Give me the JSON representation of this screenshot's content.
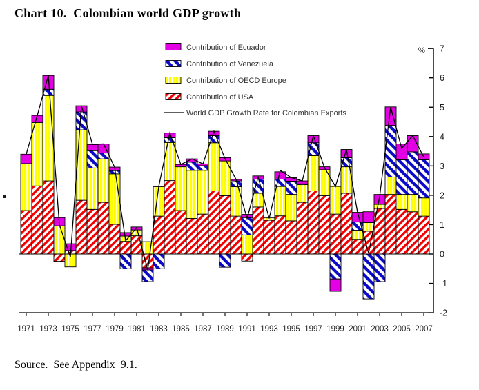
{
  "page": {
    "title": "Chart 10.  Colombian world GDP growth",
    "source": "Source.  See Appendix  9.1."
  },
  "chart_data": {
    "type": "bar",
    "subtype": "stacked-bars-with-line-overlay",
    "unit_label": "%",
    "ylim": [
      -2,
      7
    ],
    "yticks": [
      7,
      6,
      5,
      4,
      3,
      2,
      1,
      0,
      -1,
      -2
    ],
    "xtick_years": [
      1971,
      1973,
      1975,
      1977,
      1979,
      1981,
      1983,
      1985,
      1987,
      1989,
      1991,
      1993,
      1995,
      1997,
      1999,
      2001,
      2003,
      2005,
      2007
    ],
    "grid": "off",
    "legend_position": "top-center-inside",
    "series_colors": {
      "usa": "#f00000",
      "oecd": "#ffff00",
      "venezuela": "#0a0ac8",
      "ecuador": "#e400e4",
      "line": "#000000"
    },
    "legend": [
      {
        "key": "ecuador",
        "label": "Contribution of Ecuador",
        "swatch": "magenta-solid"
      },
      {
        "key": "venezuela",
        "label": "Contribution of Venezuela",
        "swatch": "blue-diagonal-hatch"
      },
      {
        "key": "oecd",
        "label": "Contribution of OECD Europe",
        "swatch": "yellow-white-stripes"
      },
      {
        "key": "usa",
        "label": "Contribution of USA",
        "swatch": "red-diagonal-hatch"
      },
      {
        "key": "line",
        "label": "World GDP Growth Rate for Colombian Exports",
        "swatch": "black-line"
      }
    ],
    "years": [
      {
        "year": 1971,
        "pos": [
          [
            "usa",
            1.48
          ],
          [
            "oecd",
            1.6
          ],
          [
            "ecuador",
            0.32
          ]
        ],
        "neg": [],
        "line": 3.4
      },
      {
        "year": 1972,
        "pos": [
          [
            "usa",
            2.32
          ],
          [
            "oecd",
            2.16
          ],
          [
            "ecuador",
            0.24
          ]
        ],
        "neg": [],
        "line": 4.72
      },
      {
        "year": 1973,
        "pos": [
          [
            "usa",
            2.49
          ],
          [
            "oecd",
            2.91
          ],
          [
            "venezuela",
            0.21
          ],
          [
            "ecuador",
            0.47
          ]
        ],
        "neg": [],
        "line": 6.08
      },
      {
        "year": 1974,
        "pos": [
          [
            "oecd",
            0.96
          ],
          [
            "ecuador",
            0.28
          ]
        ],
        "neg": [
          [
            "usa",
            0.25
          ]
        ],
        "line": 1.0
      },
      {
        "year": 1975,
        "pos": [
          [
            "usa",
            0.12
          ],
          [
            "ecuador",
            0.23
          ]
        ],
        "neg": [
          [
            "oecd",
            0.44
          ]
        ],
        "line": -0.1
      },
      {
        "year": 1976,
        "pos": [
          [
            "usa",
            1.83
          ],
          [
            "oecd",
            2.4
          ],
          [
            "venezuela",
            0.61
          ],
          [
            "ecuador",
            0.21
          ]
        ],
        "neg": [],
        "line": 5.05
      },
      {
        "year": 1977,
        "pos": [
          [
            "usa",
            1.52
          ],
          [
            "oecd",
            1.41
          ],
          [
            "venezuela",
            0.59
          ],
          [
            "ecuador",
            0.21
          ]
        ],
        "neg": [],
        "line": 3.73
      },
      {
        "year": 1978,
        "pos": [
          [
            "usa",
            1.76
          ],
          [
            "oecd",
            1.48
          ],
          [
            "venezuela",
            0.2
          ],
          [
            "ecuador",
            0.31
          ]
        ],
        "neg": [],
        "line": 3.75
      },
      {
        "year": 1979,
        "pos": [
          [
            "usa",
            1.01
          ],
          [
            "oecd",
            1.72
          ],
          [
            "venezuela",
            0.11
          ],
          [
            "ecuador",
            0.12
          ]
        ],
        "neg": [],
        "line": 2.96
      },
      {
        "year": 1980,
        "pos": [
          [
            "usa",
            0.43
          ],
          [
            "oecd",
            0.18
          ],
          [
            "ecuador",
            0.12
          ]
        ],
        "neg": [
          [
            "venezuela",
            0.5
          ]
        ],
        "line": 0.45
      },
      {
        "year": 1981,
        "pos": [
          [
            "usa",
            0.62
          ],
          [
            "oecd",
            0.2
          ],
          [
            "ecuador",
            0.1
          ]
        ],
        "neg": [],
        "line": 0.9
      },
      {
        "year": 1982,
        "pos": [
          [
            "oecd",
            0.42
          ]
        ],
        "neg": [
          [
            "usa",
            0.47
          ],
          [
            "ecuador",
            0.07
          ],
          [
            "venezuela",
            0.4
          ]
        ],
        "line": -0.55
      },
      {
        "year": 1983,
        "pos": [
          [
            "usa",
            1.29
          ],
          [
            "oecd",
            1.0
          ]
        ],
        "neg": [
          [
            "venezuela",
            0.5
          ]
        ],
        "line": 2.3
      },
      {
        "year": 1984,
        "pos": [
          [
            "usa",
            2.5
          ],
          [
            "oecd",
            1.3
          ],
          [
            "venezuela",
            0.16
          ],
          [
            "ecuador",
            0.16
          ]
        ],
        "neg": [],
        "line": 4.12
      },
      {
        "year": 1985,
        "pos": [
          [
            "usa",
            1.48
          ],
          [
            "oecd",
            1.49
          ],
          [
            "ecuador",
            0.08
          ]
        ],
        "neg": [],
        "line": 3.05
      },
      {
        "year": 1986,
        "pos": [
          [
            "usa",
            1.21
          ],
          [
            "oecd",
            1.64
          ],
          [
            "venezuela",
            0.28
          ],
          [
            "ecuador",
            0.11
          ]
        ],
        "neg": [],
        "line": 3.24
      },
      {
        "year": 1987,
        "pos": [
          [
            "usa",
            1.36
          ],
          [
            "oecd",
            1.49
          ],
          [
            "venezuela",
            0.16
          ],
          [
            "ecuador",
            0.06
          ]
        ],
        "neg": [],
        "line": 3.07
      },
      {
        "year": 1988,
        "pos": [
          [
            "usa",
            2.15
          ],
          [
            "oecd",
            1.64
          ],
          [
            "venezuela",
            0.24
          ],
          [
            "ecuador",
            0.15
          ]
        ],
        "neg": [],
        "line": 4.18
      },
      {
        "year": 1989,
        "pos": [
          [
            "usa",
            1.99
          ],
          [
            "oecd",
            1.18
          ],
          [
            "ecuador",
            0.11
          ]
        ],
        "neg": [
          [
            "venezuela",
            0.45
          ]
        ],
        "line": 3.25
      },
      {
        "year": 1990,
        "pos": [
          [
            "usa",
            1.29
          ],
          [
            "oecd",
            1.0
          ],
          [
            "venezuela",
            0.2
          ],
          [
            "ecuador",
            0.05
          ]
        ],
        "neg": [],
        "line": 2.54
      },
      {
        "year": 1991,
        "pos": [
          [
            "oecd",
            0.65
          ],
          [
            "venezuela",
            0.59
          ],
          [
            "ecuador",
            0.11
          ]
        ],
        "neg": [
          [
            "usa",
            0.24
          ]
        ],
        "line": 1.21
      },
      {
        "year": 1992,
        "pos": [
          [
            "usa",
            1.6
          ],
          [
            "oecd",
            0.47
          ],
          [
            "venezuela",
            0.48
          ],
          [
            "ecuador",
            0.11
          ]
        ],
        "neg": [],
        "line": 2.62
      },
      {
        "year": 1993,
        "pos": [
          [
            "usa",
            1.15
          ],
          [
            "oecd",
            0.08
          ]
        ],
        "neg": [],
        "line": 1.21
      },
      {
        "year": 1994,
        "pos": [
          [
            "usa",
            1.3
          ],
          [
            "oecd",
            1.0
          ],
          [
            "venezuela",
            0.25
          ],
          [
            "ecuador",
            0.25
          ]
        ],
        "neg": [],
        "line": 2.85
      },
      {
        "year": 1995,
        "pos": [
          [
            "usa",
            1.13
          ],
          [
            "oecd",
            0.9
          ],
          [
            "venezuela",
            0.45
          ],
          [
            "ecuador",
            0.12
          ]
        ],
        "neg": [],
        "line": 2.6
      },
      {
        "year": 1996,
        "pos": [
          [
            "usa",
            1.76
          ],
          [
            "oecd",
            0.6
          ],
          [
            "venezuela",
            0.03
          ],
          [
            "ecuador",
            0.1
          ]
        ],
        "neg": [],
        "line": 2.49
      },
      {
        "year": 1997,
        "pos": [
          [
            "usa",
            2.15
          ],
          [
            "oecd",
            1.2
          ],
          [
            "venezuela",
            0.44
          ],
          [
            "ecuador",
            0.24
          ]
        ],
        "neg": [],
        "line": 4.03
      },
      {
        "year": 1998,
        "pos": [
          [
            "usa",
            1.99
          ],
          [
            "oecd",
            0.88
          ],
          [
            "ecuador",
            0.1
          ]
        ],
        "neg": [],
        "line": 2.95
      },
      {
        "year": 1999,
        "pos": [
          [
            "usa",
            1.36
          ],
          [
            "oecd",
            0.94
          ]
        ],
        "neg": [
          [
            "venezuela",
            0.85
          ],
          [
            "ecuador",
            0.42
          ]
        ],
        "line": 2.3
      },
      {
        "year": 2000,
        "pos": [
          [
            "usa",
            2.07
          ],
          [
            "oecd",
            0.9
          ],
          [
            "venezuela",
            0.31
          ],
          [
            "ecuador",
            0.28
          ]
        ],
        "neg": [],
        "line": 3.56
      },
      {
        "year": 2001,
        "pos": [
          [
            "usa",
            0.5
          ],
          [
            "oecd",
            0.31
          ],
          [
            "venezuela",
            0.28
          ],
          [
            "ecuador",
            0.33
          ]
        ],
        "neg": [],
        "line": 1.42
      },
      {
        "year": 2002,
        "pos": [
          [
            "usa",
            0.78
          ],
          [
            "oecd",
            0.29
          ],
          [
            "ecuador",
            0.37
          ]
        ],
        "neg": [
          [
            "venezuela",
            1.53
          ]
        ],
        "line": 0.03
      },
      {
        "year": 2003,
        "pos": [
          [
            "usa",
            1.55
          ],
          [
            "oecd",
            0.14
          ],
          [
            "ecuador",
            0.34
          ]
        ],
        "neg": [
          [
            "venezuela",
            0.94
          ]
        ],
        "line": 1.95
      },
      {
        "year": 2004,
        "pos": [
          [
            "usa",
            2.03
          ],
          [
            "oecd",
            0.59
          ],
          [
            "venezuela",
            1.76
          ],
          [
            "ecuador",
            0.63
          ]
        ],
        "neg": [],
        "line": 5.0
      },
      {
        "year": 2005,
        "pos": [
          [
            "usa",
            1.52
          ],
          [
            "oecd",
            0.51
          ],
          [
            "venezuela",
            1.18
          ],
          [
            "ecuador",
            0.54
          ]
        ],
        "neg": [],
        "line": 3.6
      },
      {
        "year": 2006,
        "pos": [
          [
            "usa",
            1.44
          ],
          [
            "oecd",
            0.59
          ],
          [
            "venezuela",
            1.45
          ],
          [
            "ecuador",
            0.55
          ]
        ],
        "neg": [],
        "line": 4.03
      },
      {
        "year": 2007,
        "pos": [
          [
            "usa",
            1.29
          ],
          [
            "oecd",
            0.62
          ],
          [
            "venezuela",
            1.3
          ],
          [
            "ecuador",
            0.2
          ]
        ],
        "neg": [],
        "line": 3.3
      }
    ]
  }
}
